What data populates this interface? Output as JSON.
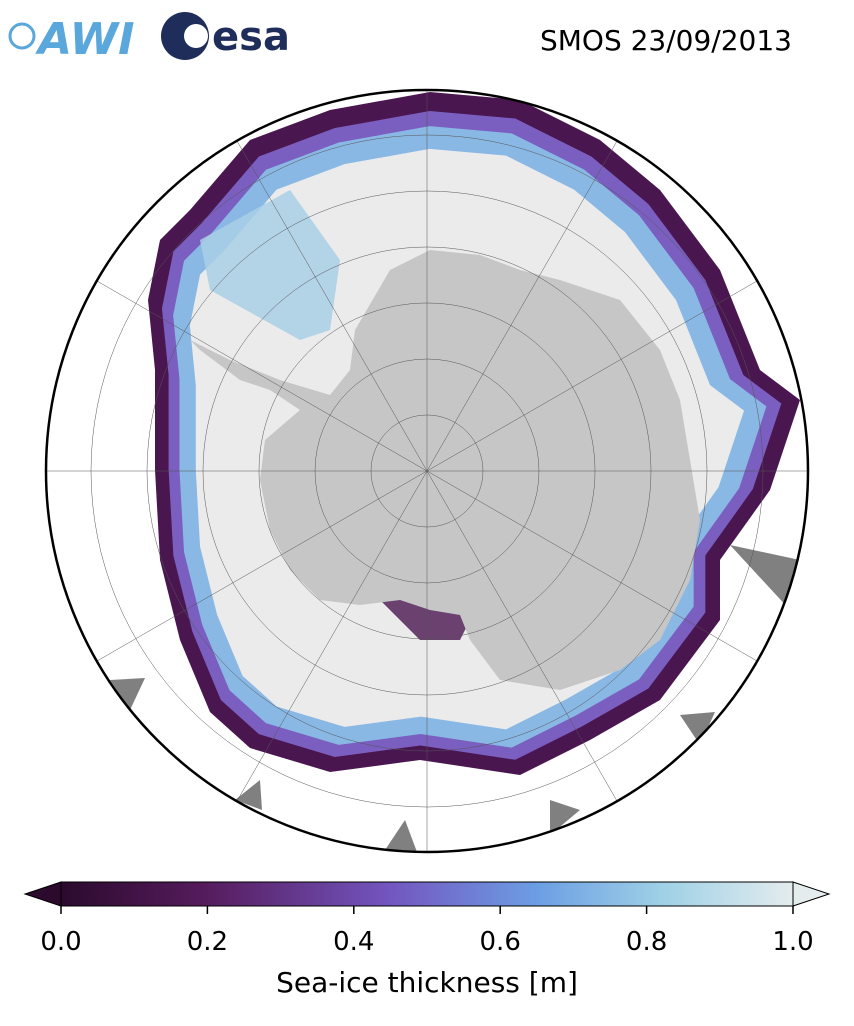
{
  "logos": [
    "AWI",
    "esa"
  ],
  "title": "SMOS 23/09/2013",
  "colorbar": {
    "label": "Sea-ice thickness [m]",
    "lim": [
      0,
      1
    ],
    "ticks": [
      {
        "value": 0,
        "label": "0.0"
      },
      0.2,
      0.4,
      0.6,
      0.8,
      {
        "value": 1,
        "label": "1.0"
      }
    ]
  }
}
